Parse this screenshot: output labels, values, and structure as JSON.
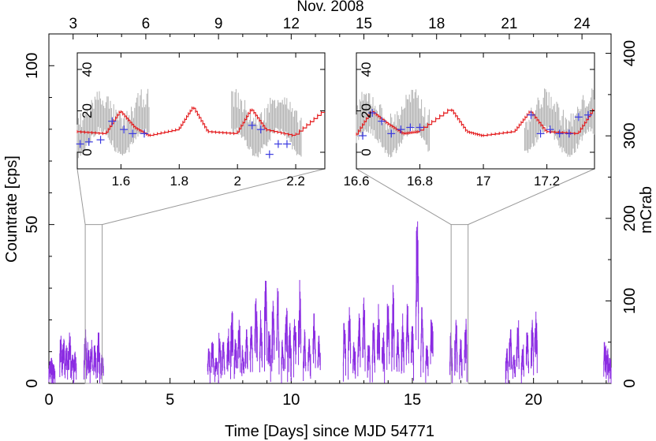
{
  "chart_data": [
    {
      "type": "line",
      "xlabel": "Time [Days] since MJD 54771",
      "ylabel": "Countrate [cps]",
      "top_axis_label": "Nov. 2008",
      "right_axis_label": "mCrab",
      "xlim": [
        0,
        23.2
      ],
      "ylim": [
        0,
        110
      ],
      "x_ticks": [
        "0",
        "5",
        "10",
        "15",
        "20"
      ],
      "y_ticks": [
        "0",
        "50",
        "100"
      ],
      "top_ticks": [
        "3",
        "6",
        "9",
        "12",
        "15",
        "18",
        "21",
        "24"
      ],
      "right_ticks": [
        "0",
        "100",
        "200",
        "300",
        "400"
      ],
      "colors": {
        "lightcurve": "#8a2be2"
      },
      "segments": [
        {
          "x": [
            0.05,
            0.13,
            0.2
          ],
          "peak": [
            7,
            8,
            6
          ]
        },
        {
          "x": [
            0.5,
            0.6,
            0.72,
            0.85,
            0.97,
            1.08
          ],
          "peak": [
            15,
            14,
            12,
            16,
            9,
            10
          ]
        },
        {
          "x": [
            1.5,
            1.62,
            1.75,
            1.9,
            2.05,
            2.2
          ],
          "peak": [
            17,
            13,
            14,
            12,
            16,
            9
          ]
        },
        {
          "x": [
            6.6,
            6.75,
            6.9,
            7.05,
            7.2,
            7.4,
            7.55,
            7.7,
            7.85,
            8.0,
            8.15
          ],
          "peak": [
            11,
            14,
            8,
            16,
            13,
            18,
            24,
            14,
            20,
            12,
            17
          ]
        },
        {
          "x": [
            8.35,
            8.55,
            8.75,
            8.95,
            9.1,
            9.25,
            9.45,
            9.65,
            9.8,
            9.95
          ],
          "peak": [
            18,
            27,
            23,
            36,
            17,
            26,
            30,
            14,
            24,
            19
          ]
        },
        {
          "x": [
            10.15,
            10.35,
            10.55,
            10.75,
            10.95,
            11.15
          ],
          "peak": [
            23,
            36,
            17,
            14,
            22,
            15
          ]
        },
        {
          "x": [
            12.2,
            12.4,
            12.6,
            12.8,
            13.0,
            13.2,
            13.4,
            13.6,
            13.8,
            14.0
          ],
          "peak": [
            19,
            24,
            13,
            22,
            27,
            12,
            19,
            25,
            16,
            28
          ]
        },
        {
          "x": [
            14.2,
            14.4,
            14.6,
            14.8,
            15.0,
            15.2,
            15.4,
            15.6,
            15.8
          ],
          "peak": [
            31,
            17,
            22,
            25,
            18,
            51,
            24,
            12,
            22
          ]
        },
        {
          "x": [
            16.6,
            16.8,
            17.0,
            17.2
          ],
          "peak": [
            16,
            20,
            14,
            21
          ]
        },
        {
          "x": [
            18.9,
            19.05,
            19.2,
            19.35,
            19.55,
            19.75,
            19.95,
            20.1
          ],
          "peak": [
            11,
            17,
            9,
            21,
            13,
            16,
            20,
            24
          ]
        },
        {
          "x": [
            22.95,
            23.05,
            23.15
          ],
          "peak": [
            13,
            11,
            8
          ]
        }
      ],
      "zoom_ranges": [
        [
          1.5,
          2.2
        ],
        [
          16.6,
          17.3
        ]
      ]
    },
    {
      "type": "line",
      "name": "inset-left",
      "xlim": [
        1.45,
        2.3
      ],
      "ylim": [
        -8,
        48
      ],
      "x_ticks": [
        "1.6",
        "1.8",
        "2",
        "2.2"
      ],
      "y_ticks": [
        "0",
        "20",
        "40"
      ],
      "model_x": [
        1.45,
        1.55,
        1.6,
        1.65,
        1.7,
        1.8,
        1.85,
        1.9,
        2.0,
        2.05,
        2.1,
        2.2,
        2.3
      ],
      "model_y": [
        10,
        9,
        20,
        12,
        8,
        11,
        22,
        10,
        9,
        21,
        11,
        8,
        20
      ],
      "data_x": [
        1.46,
        1.49,
        1.53,
        1.57,
        1.61,
        1.64,
        1.68,
        2.05,
        2.08,
        2.11,
        2.14,
        2.17
      ],
      "data_y": [
        4,
        5,
        6,
        15,
        11,
        9,
        9,
        13,
        11,
        -1,
        4,
        4
      ],
      "noise_ranges": [
        [
          1.45,
          1.7
        ],
        [
          1.98,
          2.22
        ]
      ]
    },
    {
      "type": "line",
      "name": "inset-right",
      "xlim": [
        16.6,
        17.35
      ],
      "ylim": [
        -8,
        48
      ],
      "x_ticks": [
        "16.6",
        "16.8",
        "17",
        "17.2"
      ],
      "y_ticks": [
        "0",
        "20",
        "40"
      ],
      "model_x": [
        16.6,
        16.65,
        16.7,
        16.75,
        16.8,
        16.9,
        16.95,
        17.0,
        17.1,
        17.15,
        17.2,
        17.3,
        17.35
      ],
      "model_y": [
        8,
        20,
        14,
        9,
        10,
        21,
        10,
        8,
        10,
        20,
        10,
        9,
        21
      ],
      "data_x": [
        16.62,
        16.65,
        16.68,
        16.71,
        16.74,
        16.77,
        16.8,
        17.15,
        17.18,
        17.21,
        17.24,
        17.27,
        17.3,
        17.33
      ],
      "data_y": [
        8,
        19,
        15,
        9,
        11,
        12,
        12,
        18,
        9,
        11,
        9,
        9,
        17,
        18
      ],
      "noise_ranges": [
        [
          16.6,
          16.83
        ],
        [
          17.13,
          17.35
        ]
      ]
    }
  ]
}
